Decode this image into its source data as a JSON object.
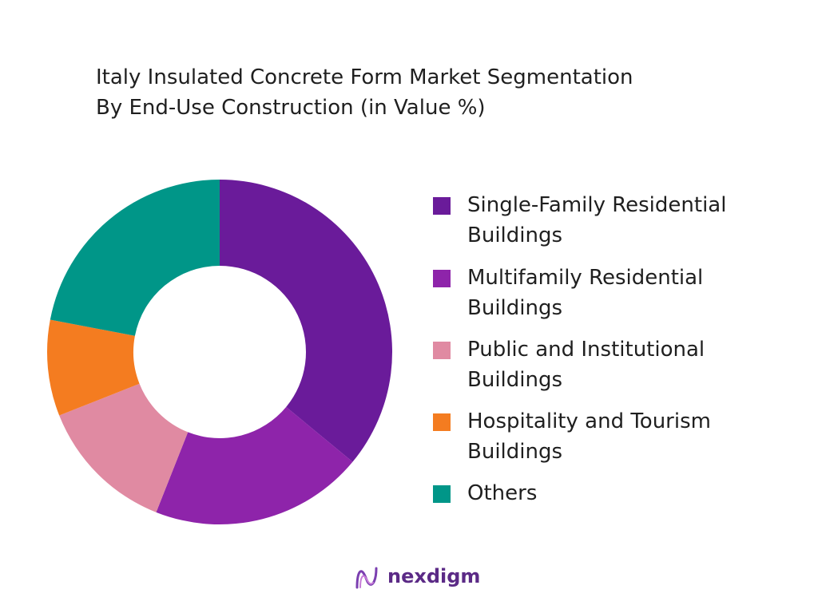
{
  "chart_data": {
    "type": "pie",
    "title": "Italy Insulated Concrete Form Market Segmentation By End-Use Construction (in Value %)",
    "title_lines": [
      "Italy Insulated Concrete Form Market Segmentation",
      "By End-Use Construction (in Value %)"
    ],
    "donut": true,
    "start_angle_deg": 0,
    "direction": "clockwise",
    "legend_position": "right",
    "categories": [
      "Single-Family Residential Buildings",
      "Multifamily Residential Buildings",
      "Public and Institutional Buildings",
      "Hospitality and Tourism Buildings",
      "Others"
    ],
    "legend_lines": [
      [
        "Single-Family Residential",
        "Buildings"
      ],
      [
        "Multifamily Residential",
        "Buildings"
      ],
      [
        "Public and Institutional",
        "Buildings"
      ],
      [
        "Hospitality and Tourism",
        "Buildings"
      ],
      [
        "Others"
      ]
    ],
    "values": [
      36,
      20,
      13,
      9,
      22
    ],
    "colors": [
      "#6a1b9a",
      "#8e24aa",
      "#e08aa2",
      "#f47c20",
      "#009688"
    ]
  },
  "brand": {
    "name": "nexdigm",
    "color": "#5b2a86",
    "icon": "nexdigm-logo-icon"
  }
}
